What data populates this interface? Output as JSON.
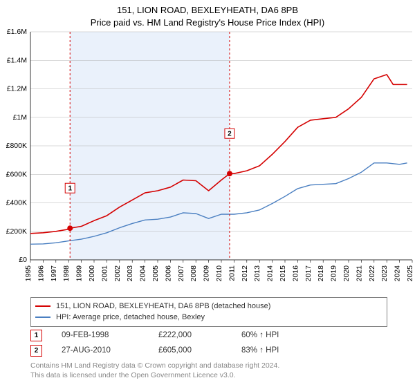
{
  "title_main": "151, LION ROAD, BEXLEYHEATH, DA6 8PB",
  "title_sub": "Price paid vs. HM Land Registry's House Price Index (HPI)",
  "chart": {
    "type": "line",
    "background_color": "#ffffff",
    "grid_color": "#b3b3b3",
    "shaded_band_color": "#eaf1fb",
    "shaded_band_x_start": 1998.11,
    "shaded_band_x_end": 2010.65,
    "xlim": [
      1995,
      2025
    ],
    "x_ticks": [
      1995,
      1996,
      1997,
      1998,
      1999,
      2000,
      2001,
      2002,
      2003,
      2004,
      2005,
      2006,
      2007,
      2008,
      2009,
      2010,
      2011,
      2012,
      2013,
      2014,
      2015,
      2016,
      2017,
      2018,
      2019,
      2020,
      2021,
      2022,
      2023,
      2024,
      2025
    ],
    "x_tick_rotation": -90,
    "ylim": [
      0,
      1600000
    ],
    "y_ticks": [
      0,
      200000,
      400000,
      600000,
      800000,
      1000000,
      1200000,
      1400000,
      1600000
    ],
    "y_tick_labels": [
      "£0",
      "£200K",
      "£400K",
      "£600K",
      "£800K",
      "£1M",
      "£1.2M",
      "£1.4M",
      "£1.6M"
    ],
    "y_label_fontsize": 10.5,
    "x_label_fontsize": 10.5,
    "series": [
      {
        "name": "price_paid",
        "label": "151, LION ROAD, BEXLEYHEATH, DA6 8PB (detached house)",
        "color": "#d40000",
        "line_width": 1.6,
        "x": [
          1995,
          1996,
          1997,
          1998,
          1998.11,
          1999,
          2000,
          2001,
          2002,
          2003,
          2004,
          2005,
          2006,
          2007,
          2008,
          2009,
          2010,
          2010.65,
          2011,
          2012,
          2013,
          2014,
          2015,
          2016,
          2017,
          2018,
          2019,
          2020,
          2021,
          2022,
          2023,
          2023.5,
          2024,
          2024.6
        ],
        "y": [
          185000,
          190000,
          200000,
          215000,
          222000,
          235000,
          275000,
          310000,
          370000,
          420000,
          470000,
          485000,
          510000,
          560000,
          555000,
          485000,
          560000,
          605000,
          605000,
          625000,
          660000,
          740000,
          830000,
          930000,
          980000,
          990000,
          1000000,
          1060000,
          1140000,
          1270000,
          1300000,
          1230000,
          1230000,
          1230000
        ]
      },
      {
        "name": "hpi",
        "label": "HPI: Average price, detached house, Bexley",
        "color": "#4a7fc1",
        "line_width": 1.4,
        "x": [
          1995,
          1996,
          1997,
          1998,
          1999,
          2000,
          2001,
          2002,
          2003,
          2004,
          2005,
          2006,
          2007,
          2008,
          2009,
          2010,
          2011,
          2012,
          2013,
          2014,
          2015,
          2016,
          2017,
          2018,
          2019,
          2020,
          2021,
          2022,
          2023,
          2024,
          2024.6
        ],
        "y": [
          110000,
          112000,
          120000,
          133000,
          145000,
          165000,
          190000,
          225000,
          255000,
          280000,
          285000,
          300000,
          330000,
          325000,
          290000,
          320000,
          320000,
          330000,
          350000,
          395000,
          445000,
          500000,
          525000,
          530000,
          535000,
          570000,
          615000,
          680000,
          680000,
          670000,
          680000
        ]
      }
    ],
    "sale_markers": [
      {
        "n": "1",
        "x": 1998.11,
        "y": 222000,
        "color": "#d40000",
        "box_y_offset": -58
      },
      {
        "n": "2",
        "x": 2010.65,
        "y": 605000,
        "color": "#d40000",
        "box_y_offset": -58
      }
    ],
    "marker_dashed_line_color": "#d40000",
    "marker_box_border": "#d40000",
    "marker_box_bg": "#ffffff",
    "marker_box_text": "#000000",
    "marker_box_size": 14,
    "marker_dot_radius": 4
  },
  "legend": {
    "border_color": "#808080",
    "rows": [
      {
        "color": "#d40000",
        "label": "151, LION ROAD, BEXLEYHEATH, DA6 8PB (detached house)"
      },
      {
        "color": "#4a7fc1",
        "label": "HPI: Average price, detached house, Bexley"
      }
    ]
  },
  "sales": [
    {
      "n": "1",
      "color": "#d40000",
      "date": "09-FEB-1998",
      "price": "£222,000",
      "pct": "60% ↑ HPI"
    },
    {
      "n": "2",
      "color": "#d40000",
      "date": "27-AUG-2010",
      "price": "£605,000",
      "pct": "83% ↑ HPI"
    }
  ],
  "footer_line1": "Contains HM Land Registry data © Crown copyright and database right 2024.",
  "footer_line2": "This data is licensed under the Open Government Licence v3.0."
}
